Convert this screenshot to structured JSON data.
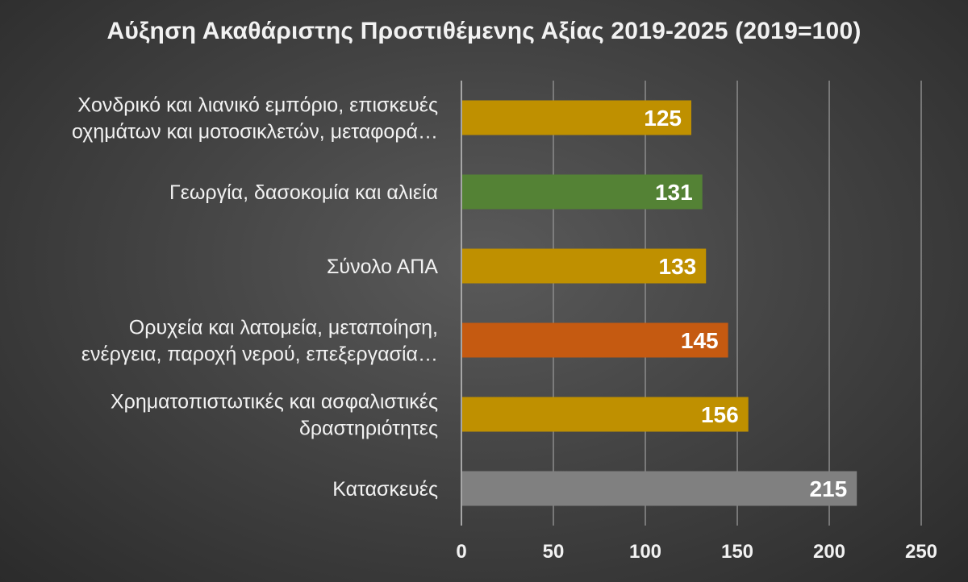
{
  "chart_data": {
    "type": "bar",
    "orientation": "horizontal",
    "title": "Αύξηση Ακαθάριστης Προστιθέμενης Αξίας 2019-2025 (2019=100)",
    "categories": [
      [
        "Χονδρικό και λιανικό εμπόριο, επισκευές",
        "οχημάτων και μοτοσικλετών, μεταφορά…"
      ],
      [
        "Γεωργία, δασοκομία και αλιεία"
      ],
      [
        "Σύνολο ΑΠΑ"
      ],
      [
        "Ορυχεία και λατομεία, μεταποίηση,",
        "ενέργεια, παροχή νερού, επεξεργασία…"
      ],
      [
        "Χρηματοπιστωτικές και ασφαλιστικές",
        "δραστηριότητες"
      ],
      [
        "Κατασκευές"
      ]
    ],
    "values": [
      125,
      131,
      133,
      145,
      156,
      215
    ],
    "colors": [
      "#bf9000",
      "#548235",
      "#bf9000",
      "#c55a11",
      "#bf9000",
      "#808080"
    ],
    "xlim": [
      0,
      250
    ],
    "ticks": [
      0,
      50,
      100,
      150,
      200,
      250
    ],
    "grid": true,
    "legend": "none"
  }
}
